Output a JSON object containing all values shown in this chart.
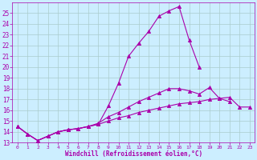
{
  "xlabel": "Windchill (Refroidissement éolien,°C)",
  "background_color": "#cceeff",
  "grid_color": "#aacccc",
  "line_color": "#aa00aa",
  "x": [
    0,
    1,
    2,
    3,
    4,
    5,
    6,
    7,
    8,
    9,
    10,
    11,
    12,
    13,
    14,
    15,
    16,
    17,
    18,
    19,
    20,
    21,
    22,
    23
  ],
  "y_upper": [
    14.5,
    13.8,
    13.2,
    13.6,
    14.0,
    14.2,
    14.3,
    14.5,
    14.7,
    16.4,
    18.5,
    21.0,
    22.2,
    23.3,
    24.7,
    25.2,
    25.6,
    22.5,
    20.0,
    null,
    null,
    null,
    null,
    null
  ],
  "y_mid": [
    14.5,
    13.8,
    13.2,
    13.6,
    14.0,
    14.2,
    14.3,
    14.5,
    14.8,
    15.4,
    15.8,
    16.3,
    16.8,
    17.2,
    17.6,
    18.0,
    18.0,
    17.8,
    17.5,
    18.1,
    17.1,
    16.8,
    null,
    null
  ],
  "y_lower": [
    14.5,
    13.8,
    13.2,
    13.6,
    14.0,
    14.2,
    14.3,
    14.5,
    14.7,
    15.0,
    15.3,
    15.5,
    15.8,
    16.0,
    16.2,
    16.4,
    16.6,
    16.7,
    16.8,
    17.0,
    17.1,
    17.2,
    16.3,
    16.3
  ],
  "ylim_min": 13,
  "ylim_max": 26,
  "xlim_min": 0,
  "xlim_max": 23,
  "yticks": [
    13,
    14,
    15,
    16,
    17,
    18,
    19,
    20,
    21,
    22,
    23,
    24,
    25
  ],
  "xticks": [
    0,
    1,
    2,
    3,
    4,
    5,
    6,
    7,
    8,
    9,
    10,
    11,
    12,
    13,
    14,
    15,
    16,
    17,
    18,
    19,
    20,
    21,
    22,
    23
  ]
}
